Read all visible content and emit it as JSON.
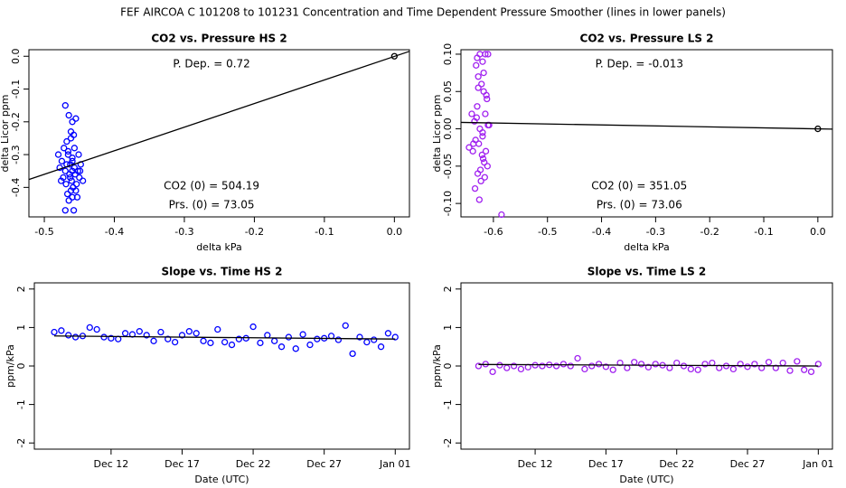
{
  "title": "FEF   AIRCOA C   101208 to 101231   Concentration and Time Dependent Pressure Smoother (lines in lower panels)",
  "chart_data": [
    {
      "type": "scatter",
      "title": "CO2 vs. Pressure HS 2",
      "x_label": "delta kPa",
      "y_label": "delta Licor ppm",
      "annotations": [
        "P. Dep. = 0.72",
        "CO2 (0) = 504.19",
        "Prs. (0) = 73.05"
      ],
      "xlim": [
        -0.522,
        0.0215
      ],
      "ylim": [
        -0.49,
        0.02
      ],
      "xticks": [
        -0.5,
        -0.4,
        -0.3,
        -0.2,
        -0.1,
        {
          "value": 0,
          "label": "0.0"
        }
      ],
      "yticks": [
        {
          "value": 0,
          "label": "0.0"
        },
        -0.1,
        -0.2,
        -0.3,
        -0.4
      ],
      "series": [
        {
          "color": "#0000ff",
          "x": [
            -0.47,
            -0.465,
            -0.46,
            -0.462,
            -0.458,
            -0.455,
            -0.468,
            -0.472,
            -0.48,
            -0.475,
            -0.466,
            -0.463,
            -0.46,
            -0.457,
            -0.452,
            -0.45,
            -0.445,
            -0.448,
            -0.47,
            -0.464,
            -0.461,
            -0.459,
            -0.456,
            -0.473,
            -0.478,
            -0.467,
            -0.462,
            -0.46,
            -0.454,
            -0.449,
            -0.465,
            -0.47,
            -0.458,
            -0.453,
            -0.46,
            -0.466,
            -0.462,
            -0.468,
            -0.457,
            -0.451,
            -0.463,
            -0.469,
            -0.455,
            -0.46,
            -0.476
          ],
          "values": [
            -0.15,
            -0.18,
            -0.2,
            -0.23,
            -0.24,
            -0.19,
            -0.26,
            -0.28,
            -0.3,
            -0.32,
            -0.3,
            -0.33,
            -0.35,
            -0.28,
            -0.35,
            -0.37,
            -0.38,
            -0.33,
            -0.35,
            -0.36,
            -0.38,
            -0.4,
            -0.36,
            -0.37,
            -0.34,
            -0.42,
            -0.41,
            -0.43,
            -0.39,
            -0.35,
            -0.44,
            -0.47,
            -0.47,
            -0.43,
            -0.31,
            -0.29,
            -0.25,
            -0.33,
            -0.34,
            -0.3,
            -0.37,
            -0.39,
            -0.41,
            -0.32,
            -0.38
          ]
        }
      ],
      "fit": {
        "color": "#000000",
        "x": [
          -0.522,
          0.0215
        ],
        "values": [
          -0.376,
          0.015
        ]
      },
      "reference_point": {
        "color": "#000000",
        "x": 0,
        "value": 0
      }
    },
    {
      "type": "scatter",
      "title": "CO2 vs. Pressure LS 2",
      "x_label": "delta kPa",
      "y_label": "delta Licor ppm",
      "annotations": [
        "P. Dep. = -0.013",
        "CO2 (0) = 351.05",
        "Prs. (0) = 73.06"
      ],
      "xlim": [
        -0.66,
        0.027
      ],
      "ylim": [
        -0.118,
        0.106
      ],
      "xticks": [
        -0.6,
        -0.5,
        -0.4,
        -0.3,
        -0.2,
        -0.1,
        {
          "value": 0,
          "label": "0.0"
        }
      ],
      "yticks": [
        {
          "value": 0.1,
          "label": "0.10"
        },
        0.05,
        {
          "value": 0,
          "label": "0.00"
        },
        -0.05,
        {
          "value": -0.1,
          "label": "-0.10"
        }
      ],
      "series": [
        {
          "color": "#a020f0",
          "x": [
            -0.63,
            -0.625,
            -0.62,
            -0.615,
            -0.61,
            -0.632,
            -0.628,
            -0.622,
            -0.618,
            -0.612,
            -0.64,
            -0.635,
            -0.63,
            -0.625,
            -0.62,
            -0.615,
            -0.608,
            -0.645,
            -0.638,
            -0.633,
            -0.627,
            -0.621,
            -0.617,
            -0.611,
            -0.629,
            -0.624,
            -0.619,
            -0.614,
            -0.634,
            -0.626,
            -0.623,
            -0.616,
            -0.631,
            -0.62,
            -0.613,
            -0.637,
            -0.628,
            -0.618,
            -0.585,
            -0.61
          ],
          "values": [
            0.095,
            0.1,
            0.09,
            0.1,
            0.1,
            0.085,
            0.07,
            0.06,
            0.05,
            0.04,
            0.02,
            0.01,
            0.03,
            0.0,
            -0.01,
            0.02,
            0.005,
            -0.025,
            -0.03,
            -0.015,
            -0.02,
            -0.035,
            -0.045,
            -0.05,
            -0.06,
            -0.055,
            -0.04,
            -0.03,
            -0.08,
            -0.095,
            -0.07,
            -0.065,
            0.015,
            -0.005,
            0.045,
            -0.02,
            0.055,
            0.075,
            -0.115,
            0.005
          ]
        }
      ],
      "fit": {
        "color": "#000000",
        "x": [
          -0.66,
          0.027
        ],
        "values": [
          0.0086,
          -0.0004
        ]
      },
      "reference_point": {
        "color": "#000000",
        "x": 0,
        "value": 0
      }
    },
    {
      "type": "scatter",
      "title": "Slope vs. Time HS 2",
      "x_label": "Date (UTC)",
      "y_label": "ppm/kPa",
      "xlim": [
        6.6,
        33
      ],
      "ylim": [
        -2.16,
        2.16
      ],
      "xticks": [
        {
          "value": 12,
          "label": "Dec 12"
        },
        {
          "value": 17,
          "label": "Dec 17"
        },
        {
          "value": 22,
          "label": "Dec 22"
        },
        {
          "value": 27,
          "label": "Dec 27"
        },
        {
          "value": 32,
          "label": "Jan 01"
        }
      ],
      "yticks": [
        -2,
        -1,
        0,
        1,
        2
      ],
      "series": [
        {
          "color": "#0000ff",
          "x": [
            8,
            8.5,
            9,
            9.5,
            10,
            10.5,
            11,
            11.5,
            12,
            12.5,
            13,
            13.5,
            14,
            14.5,
            15,
            15.5,
            16,
            16.5,
            17,
            17.5,
            18,
            18.5,
            19,
            19.5,
            20,
            20.5,
            21,
            21.5,
            22,
            22.5,
            23,
            23.5,
            24,
            24.5,
            25,
            25.5,
            26,
            26.5,
            27,
            27.5,
            28,
            28.5,
            29,
            29.5,
            30,
            30.5,
            31,
            31.5,
            32
          ],
          "values": [
            0.88,
            0.92,
            0.8,
            0.75,
            0.78,
            1.0,
            0.95,
            0.75,
            0.72,
            0.7,
            0.85,
            0.82,
            0.9,
            0.8,
            0.65,
            0.88,
            0.7,
            0.62,
            0.8,
            0.9,
            0.85,
            0.65,
            0.6,
            0.95,
            0.62,
            0.55,
            0.7,
            0.72,
            1.02,
            0.6,
            0.8,
            0.65,
            0.5,
            0.75,
            0.45,
            0.82,
            0.55,
            0.7,
            0.72,
            0.78,
            0.68,
            1.05,
            0.32,
            0.75,
            0.62,
            0.68,
            0.5,
            0.85,
            0.75
          ]
        }
      ],
      "fit": {
        "color": "#000000",
        "x": [
          8,
          32
        ],
        "values": [
          0.78,
          0.7
        ]
      }
    },
    {
      "type": "scatter",
      "title": "Slope vs. Time LS 2",
      "x_label": "Date (UTC)",
      "y_label": "ppm/kPa",
      "xlim": [
        6.76,
        33
      ],
      "ylim": [
        -2.16,
        2.16
      ],
      "xticks": [
        {
          "value": 12,
          "label": "Dec 12"
        },
        {
          "value": 17,
          "label": "Dec 17"
        },
        {
          "value": 22,
          "label": "Dec 22"
        },
        {
          "value": 27,
          "label": "Dec 27"
        },
        {
          "value": 32,
          "label": "Jan 01"
        }
      ],
      "yticks": [
        -2,
        -1,
        0,
        1,
        2
      ],
      "series": [
        {
          "color": "#a020f0",
          "x": [
            8,
            8.5,
            9,
            9.5,
            10,
            10.5,
            11,
            11.5,
            12,
            12.5,
            13,
            13.5,
            14,
            14.5,
            15,
            15.5,
            16,
            16.5,
            17,
            17.5,
            18,
            18.5,
            19,
            19.5,
            20,
            20.5,
            21,
            21.5,
            22,
            22.5,
            23,
            23.5,
            24,
            24.5,
            25,
            25.5,
            26,
            26.5,
            27,
            27.5,
            28,
            28.5,
            29,
            29.5,
            30,
            30.5,
            31,
            31.5,
            32
          ],
          "values": [
            0.0,
            0.05,
            -0.15,
            0.02,
            -0.05,
            0.0,
            -0.08,
            -0.03,
            0.02,
            0.0,
            0.03,
            0.0,
            0.05,
            0.0,
            0.2,
            -0.08,
            0.0,
            0.05,
            -0.02,
            -0.1,
            0.08,
            -0.05,
            0.1,
            0.05,
            -0.03,
            0.05,
            0.02,
            -0.05,
            0.08,
            0.0,
            -0.08,
            -0.1,
            0.05,
            0.08,
            -0.05,
            0.0,
            -0.08,
            0.05,
            -0.02,
            0.05,
            -0.05,
            0.1,
            -0.05,
            0.08,
            -0.12,
            0.12,
            -0.1,
            -0.15,
            0.05
          ]
        }
      ],
      "fit": {
        "color": "#000000",
        "x": [
          8,
          32
        ],
        "values": [
          0.04,
          0.0
        ]
      }
    }
  ]
}
